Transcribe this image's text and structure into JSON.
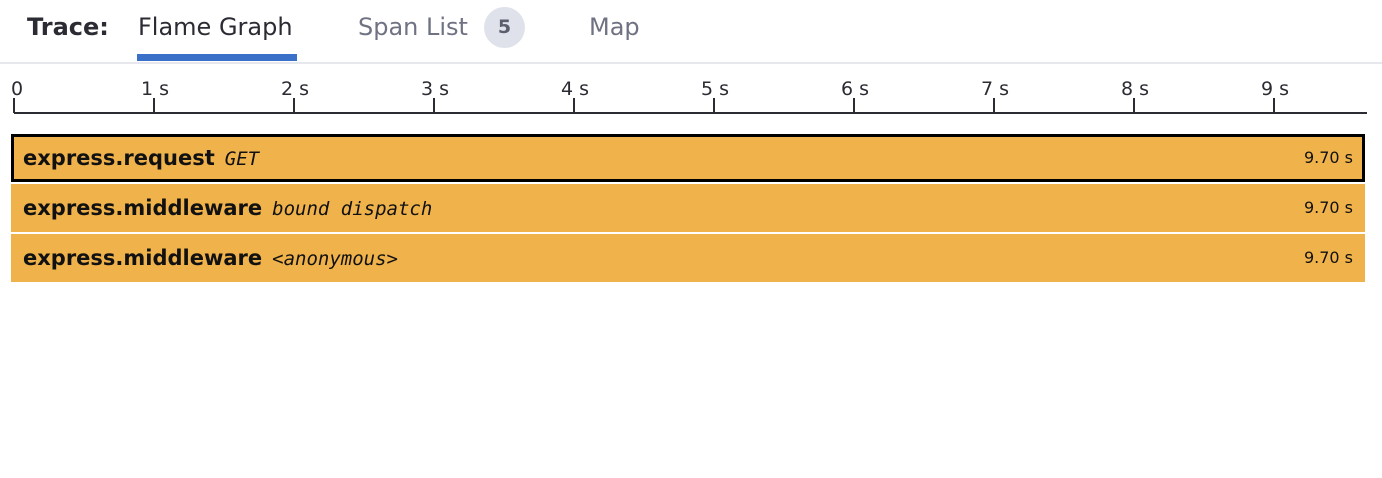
{
  "tabs": {
    "trace_label": "Trace:",
    "flame_graph": "Flame Graph",
    "span_list": "Span List",
    "span_count": "5",
    "map": "Map",
    "active_tab": "Flame Graph"
  },
  "timeline": {
    "unit": "s",
    "ticks": [
      "0",
      "1 s",
      "2 s",
      "3 s",
      "4 s",
      "5 s",
      "6 s",
      "7 s",
      "8 s",
      "9 s"
    ],
    "total_seconds": 9.7
  },
  "spans": [
    {
      "name": "express.request",
      "resource": "GET",
      "duration": "9.70 s",
      "selected": true
    },
    {
      "name": "express.middleware",
      "resource": "bound dispatch",
      "duration": "9.70 s",
      "selected": false
    },
    {
      "name": "express.middleware",
      "resource": "<anonymous>",
      "duration": "9.70 s",
      "selected": false
    }
  ],
  "colors": {
    "bar": "#f0b24b",
    "active_tab_underline": "#3a70c7",
    "badge_bg": "#dfe2ea",
    "selected_border": "#000000"
  }
}
